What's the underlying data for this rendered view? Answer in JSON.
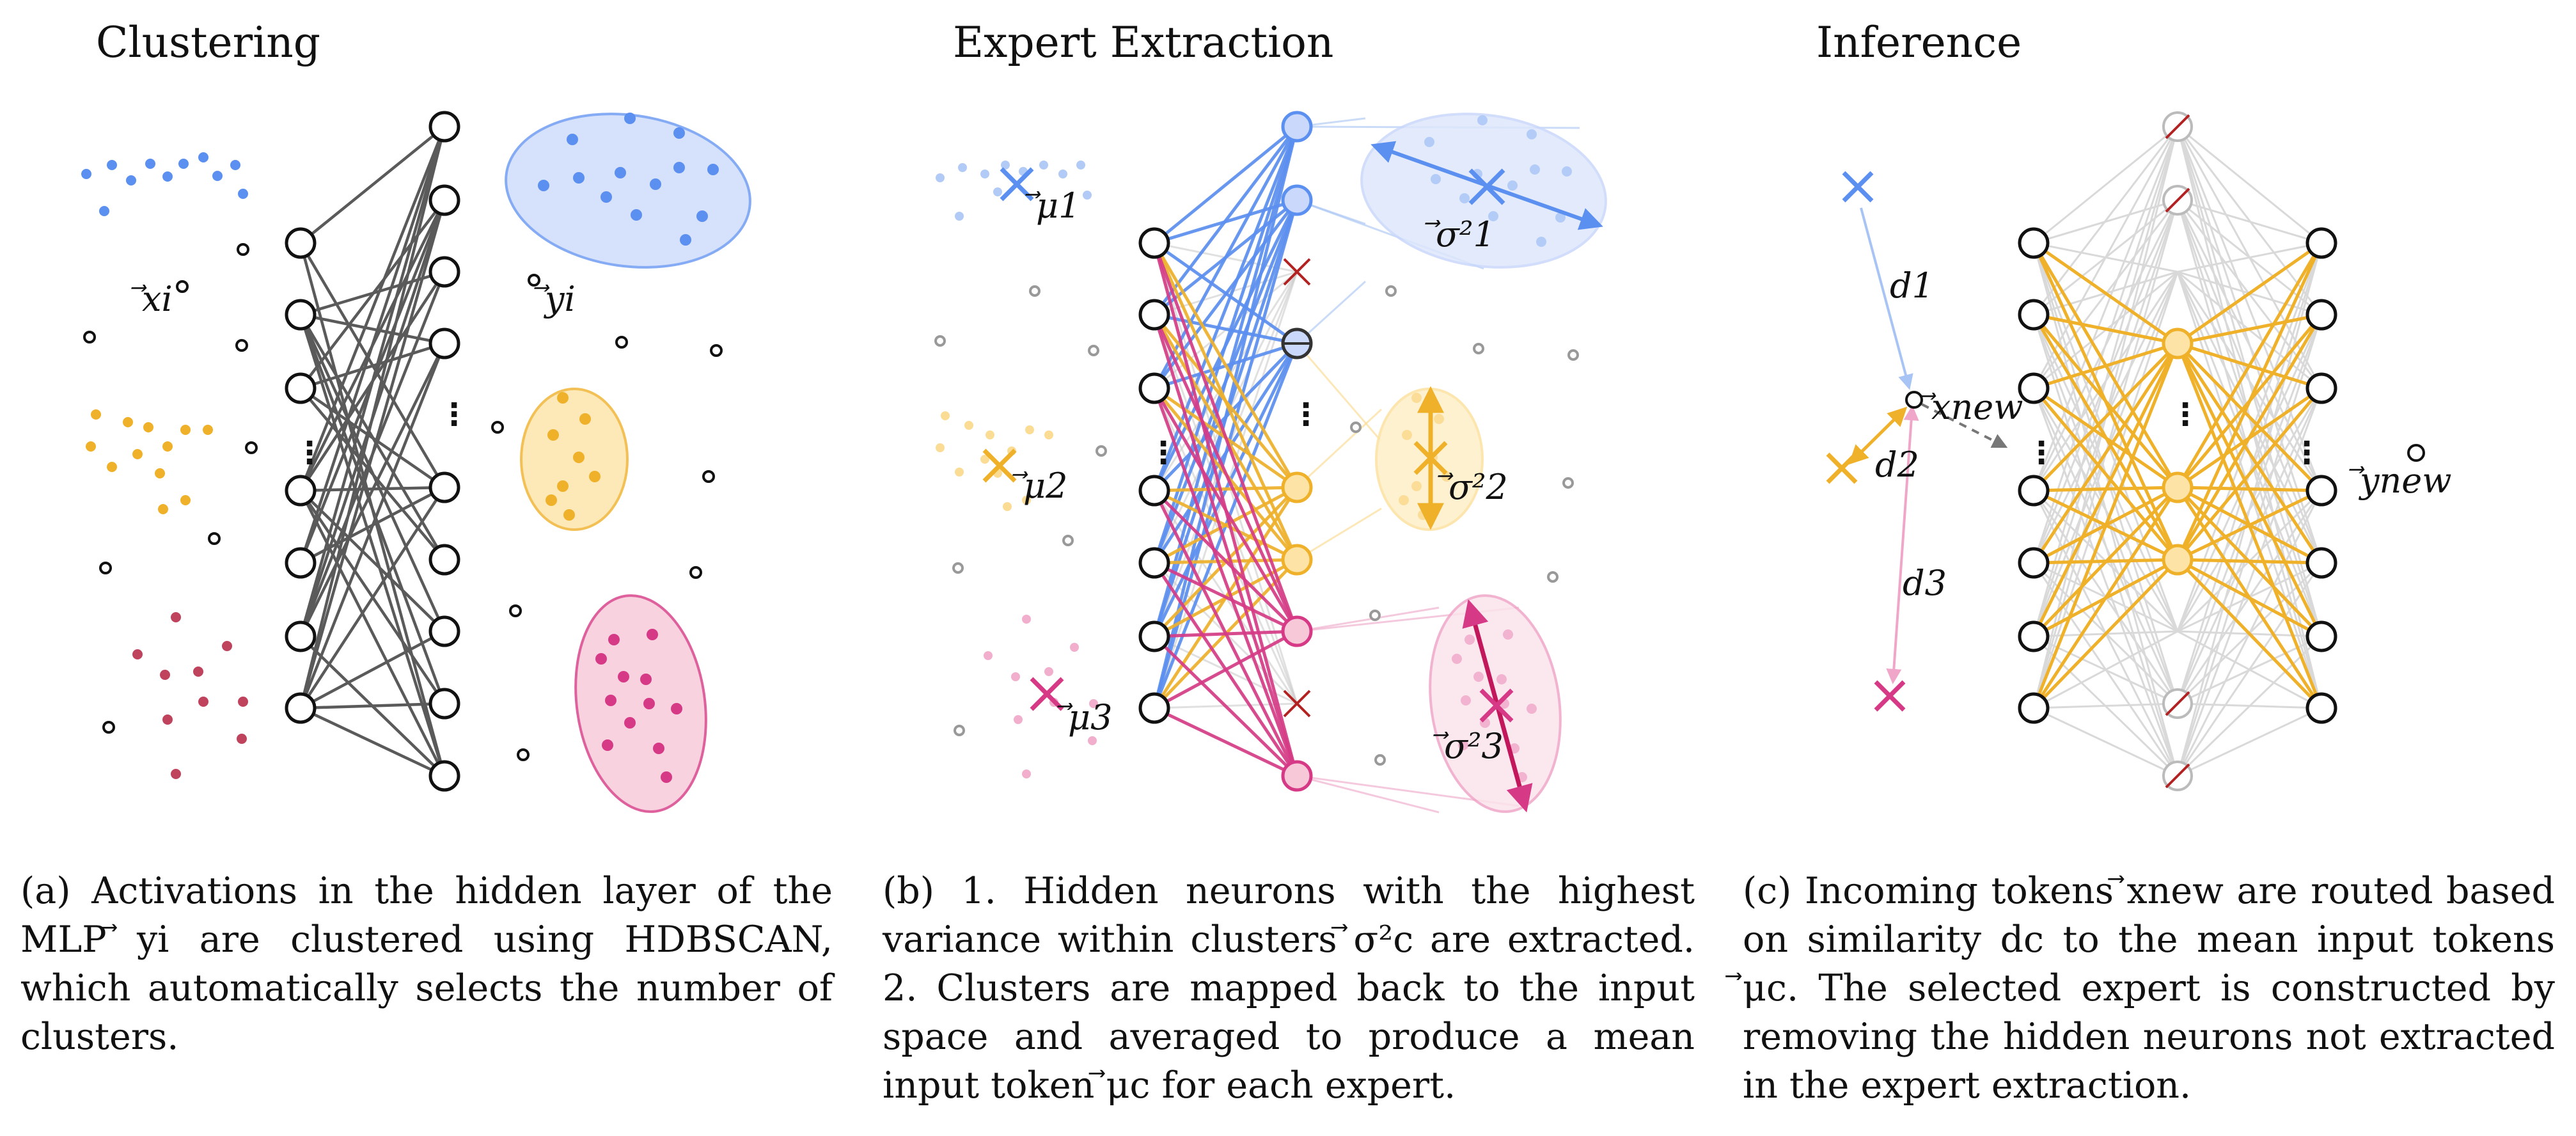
{
  "panels": [
    {
      "title": "Clustering",
      "caption": "(a) Activations in the hidden layer of the MLP ⃗yi are clustered using HDBSCAN, which automatically selects the number of clusters.",
      "labels": {
        "x": "⃗xi",
        "y": "⃗yi"
      }
    },
    {
      "title": "Expert Extraction",
      "caption": "(b) 1. Hidden neurons with the highest variance within clusters ⃗σ²c are extracted. 2. Clusters are mapped back to the input space and averaged to produce a mean input token ⃗μc for each expert.",
      "labels": {
        "mu1": "⃗μ1",
        "mu2": "⃗μ2",
        "mu3": "⃗μ3",
        "sigma1": "⃗σ²1",
        "sigma2": "⃗σ²2",
        "sigma3": "⃗σ²3"
      }
    },
    {
      "title": "Inference",
      "caption": "(c) Incoming tokens ⃗xnew are routed based on similarity dc to the mean input tokens ⃗μc. The selected expert is constructed by removing the hidden neurons not extracted in the expert extraction.",
      "labels": {
        "xnew": "⃗xnew",
        "ynew": "⃗ynew",
        "d1": "d1",
        "d2": "d2",
        "d3": "d3"
      }
    }
  ],
  "ellipsis": "⋮",
  "colors": {
    "blue": "#5b8ff0",
    "orange": "#f0b12a",
    "red": "#c0435e",
    "pink": "#d63a86",
    "darkred": "#b22222",
    "gray": "#555555",
    "lightgray": "#cccccc"
  }
}
